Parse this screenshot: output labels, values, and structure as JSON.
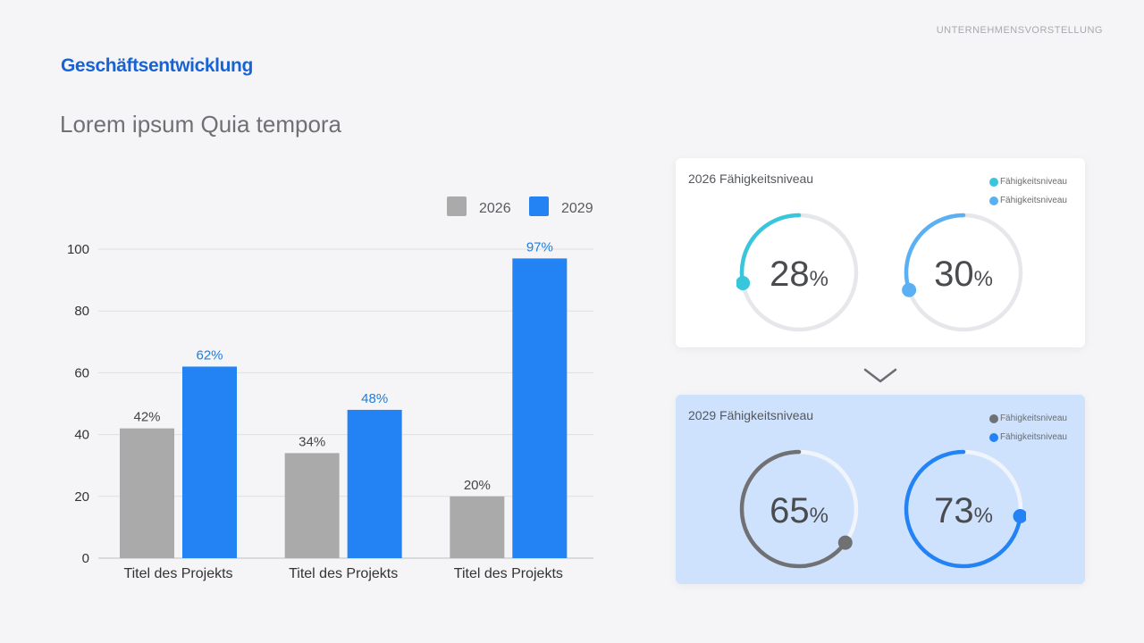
{
  "header": {
    "eyebrow": "UNTERNEHMENSVORSTELLUNG",
    "section_title": "Geschäftsentwicklung",
    "subtitle": "Lorem ipsum Quia tempora"
  },
  "chart_data": {
    "type": "bar",
    "categories": [
      "Titel des Projekts",
      "Titel des Projekts",
      "Titel des Projekts"
    ],
    "series": [
      {
        "name": "2026",
        "values": [
          42,
          34,
          20
        ],
        "labels": [
          "42%",
          "34%",
          "20%"
        ],
        "color": "#aaaaab"
      },
      {
        "name": "2029",
        "values": [
          62,
          48,
          97
        ],
        "labels": [
          "62%",
          "48%",
          "97%"
        ],
        "color": "#2383f4"
      }
    ],
    "y_ticks": [
      "0",
      "20",
      "40",
      "60",
      "80",
      "100"
    ],
    "ylim": [
      0,
      100
    ],
    "grid": true,
    "legend": "top-right",
    "label_color_2029": "#1f7de0"
  },
  "cards": [
    {
      "title": "2026 Fähigkeitsniveau",
      "legend": [
        {
          "label": "Fähigkeitsniveau",
          "color": "#38c6dc"
        },
        {
          "label": "Fähigkeitsniveau",
          "color": "#5ab0f3"
        }
      ],
      "gauges": [
        {
          "value": 28,
          "value_text": "28",
          "unit": "%",
          "color": "#38c6dc",
          "track": "#e6e7ea"
        },
        {
          "value": 30,
          "value_text": "30",
          "unit": "%",
          "color": "#5ab0f3",
          "track": "#e6e7ea"
        }
      ]
    },
    {
      "title": "2029 Fähigkeitsniveau",
      "legend": [
        {
          "label": "Fähigkeitsniveau",
          "color": "#707174"
        },
        {
          "label": "Fähigkeitsniveau",
          "color": "#2383f4"
        }
      ],
      "gauges": [
        {
          "value": 65,
          "value_text": "65",
          "unit": "%",
          "color": "#707174",
          "track": "#f1f5fb"
        },
        {
          "value": 73,
          "value_text": "73",
          "unit": "%",
          "color": "#2383f4",
          "track": "#f1f5fb"
        }
      ]
    }
  ],
  "icons": {
    "divider": "chevron-down-icon"
  }
}
